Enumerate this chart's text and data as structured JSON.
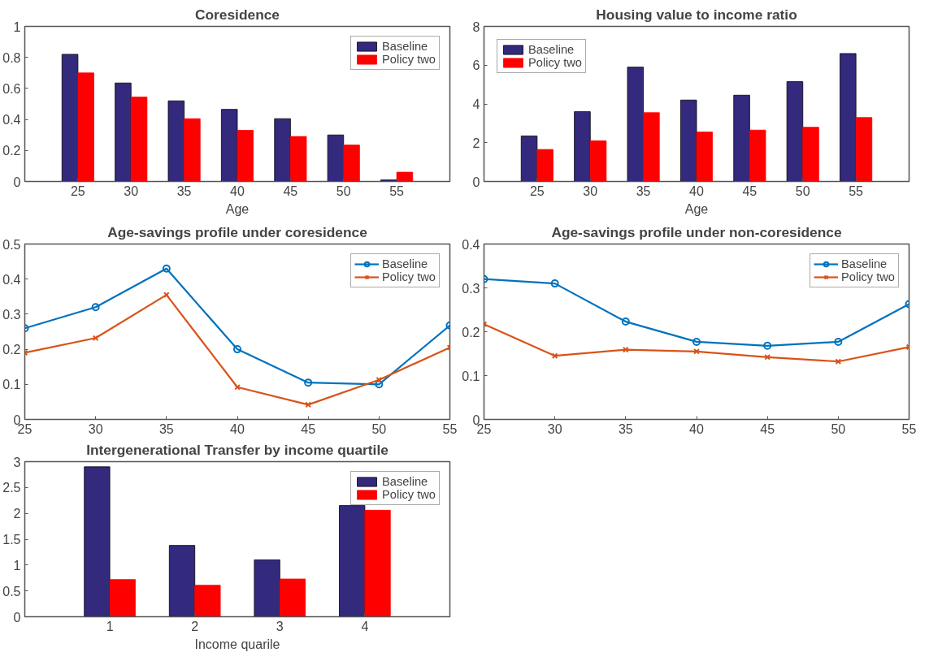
{
  "chart_data": [
    {
      "type": "bar",
      "title": "Coresidence",
      "xlabel": "Age",
      "categories": [
        "25",
        "30",
        "35",
        "40",
        "45",
        "50",
        "55"
      ],
      "ylim": [
        0,
        1
      ],
      "yticks": [
        0,
        0.2,
        0.4,
        0.6,
        0.8,
        1
      ],
      "grid": false,
      "legend": "top right",
      "series": [
        {
          "name": "Baseline",
          "color": "#332a7e",
          "values": [
            0.82,
            0.635,
            0.52,
            0.465,
            0.405,
            0.3,
            0.01
          ]
        },
        {
          "name": "Policy two",
          "color": "#ff0000",
          "values": [
            0.7,
            0.545,
            0.405,
            0.33,
            0.29,
            0.235,
            0.06
          ]
        }
      ]
    },
    {
      "type": "bar",
      "title": "Housing value to income ratio",
      "xlabel": "Age",
      "categories": [
        "25",
        "30",
        "35",
        "40",
        "45",
        "50",
        "55"
      ],
      "ylim": [
        0,
        8
      ],
      "yticks": [
        0,
        2,
        4,
        6,
        8
      ],
      "grid": false,
      "legend": "top left",
      "series": [
        {
          "name": "Baseline",
          "color": "#332a7e",
          "values": [
            2.35,
            3.6,
            5.9,
            4.2,
            4.45,
            5.15,
            6.6
          ]
        },
        {
          "name": "Policy two",
          "color": "#ff0000",
          "values": [
            1.65,
            2.1,
            3.55,
            2.55,
            2.65,
            2.8,
            3.3
          ]
        }
      ]
    },
    {
      "type": "line",
      "title": "Age-savings profile under coresidence",
      "x": [
        25,
        30,
        35,
        40,
        45,
        50,
        55
      ],
      "xlim": [
        25,
        55
      ],
      "xticks": [
        25,
        30,
        35,
        40,
        45,
        50,
        55
      ],
      "ylim": [
        0,
        0.5
      ],
      "yticks": [
        0,
        0.1,
        0.2,
        0.3,
        0.4,
        0.5
      ],
      "grid": false,
      "legend": "top right",
      "line_style": "solid",
      "series": [
        {
          "name": "Baseline",
          "color": "#0072bd",
          "marker": "circle",
          "values": [
            0.26,
            0.32,
            0.43,
            0.2,
            0.105,
            0.1,
            0.268
          ]
        },
        {
          "name": "Policy two",
          "color": "#d95319",
          "marker": "cross",
          "values": [
            0.19,
            0.232,
            0.355,
            0.092,
            0.042,
            0.113,
            0.205
          ]
        }
      ]
    },
    {
      "type": "line",
      "title": "Age-savings profile under non-coresidence",
      "x": [
        25,
        30,
        35,
        40,
        45,
        50,
        55
      ],
      "xlim": [
        25,
        55
      ],
      "xticks": [
        25,
        30,
        35,
        40,
        45,
        50,
        55
      ],
      "ylim": [
        0,
        0.4
      ],
      "yticks": [
        0,
        0.1,
        0.2,
        0.3,
        0.4
      ],
      "grid": false,
      "legend": "top right",
      "line_style": "solid",
      "series": [
        {
          "name": "Baseline",
          "color": "#0072bd",
          "marker": "circle",
          "values": [
            0.32,
            0.31,
            0.223,
            0.177,
            0.168,
            0.177,
            0.263
          ]
        },
        {
          "name": "Policy two",
          "color": "#d95319",
          "marker": "cross",
          "values": [
            0.217,
            0.145,
            0.159,
            0.155,
            0.142,
            0.132,
            0.165
          ]
        }
      ]
    },
    {
      "type": "bar",
      "title": "Intergenerational Transfer by income quartile",
      "xlabel": "Income quarile",
      "categories": [
        "1",
        "2",
        "3",
        "4"
      ],
      "ylim": [
        0,
        3
      ],
      "yticks": [
        0,
        0.5,
        1,
        1.5,
        2,
        2.5,
        3
      ],
      "grid": false,
      "legend": "top right",
      "series": [
        {
          "name": "Baseline",
          "color": "#332a7e",
          "values": [
            2.9,
            1.38,
            1.1,
            2.15
          ]
        },
        {
          "name": "Policy two",
          "color": "#ff0000",
          "values": [
            0.72,
            0.61,
            0.73,
            2.06
          ]
        }
      ]
    }
  ]
}
